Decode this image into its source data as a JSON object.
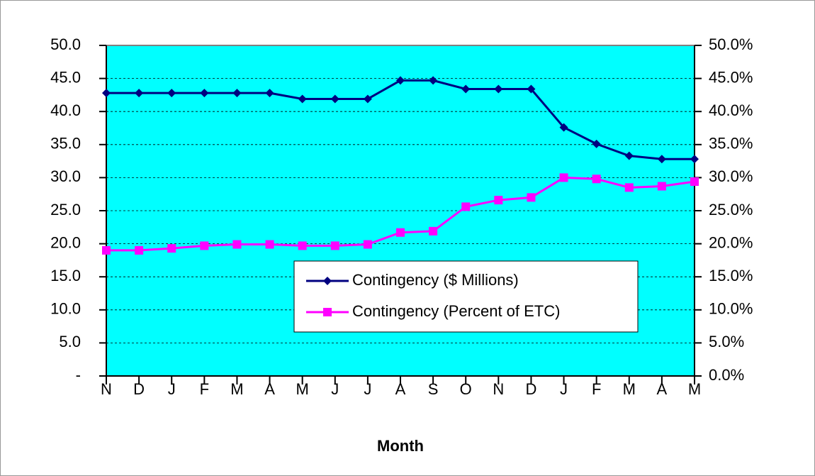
{
  "chart_data": {
    "type": "line",
    "x_label": "Month",
    "categories": [
      "N",
      "D",
      "J",
      "F",
      "M",
      "A",
      "M",
      "J",
      "J",
      "A",
      "S",
      "O",
      "N",
      "D",
      "J",
      "F",
      "M",
      "A",
      "M"
    ],
    "series": [
      {
        "name": "Contingency ($ Millions)",
        "color": "#000080",
        "marker": "diamond",
        "values": [
          42.8,
          42.8,
          42.8,
          42.8,
          42.8,
          42.8,
          41.9,
          41.9,
          41.9,
          44.7,
          44.7,
          43.4,
          43.4,
          43.4,
          37.6,
          35.1,
          33.3,
          32.8,
          32.8
        ]
      },
      {
        "name": "Contingency (Percent of ETC)",
        "color": "#ff00ff",
        "marker": "square",
        "axis": "y2",
        "values": [
          19.0,
          19.0,
          19.3,
          19.7,
          19.9,
          19.9,
          19.7,
          19.7,
          19.9,
          21.7,
          21.9,
          25.6,
          26.6,
          27.0,
          30.0,
          29.8,
          28.5,
          28.7,
          29.4
        ]
      }
    ],
    "ylim": [
      0,
      50
    ],
    "yticks": [
      {
        "value": 0,
        "label": "-"
      },
      {
        "value": 5,
        "label": "5.0"
      },
      {
        "value": 10,
        "label": "10.0"
      },
      {
        "value": 15,
        "label": "15.0"
      },
      {
        "value": 20,
        "label": "20.0"
      },
      {
        "value": 25,
        "label": "25.0"
      },
      {
        "value": 30,
        "label": "30.0"
      },
      {
        "value": 35,
        "label": "35.0"
      },
      {
        "value": 40,
        "label": "40.0"
      },
      {
        "value": 45,
        "label": "45.0"
      },
      {
        "value": 50,
        "label": "50.0"
      }
    ],
    "y2lim": [
      0,
      50
    ],
    "y2ticks": [
      {
        "value": 0,
        "label": "0.0%"
      },
      {
        "value": 5,
        "label": "5.0%"
      },
      {
        "value": 10,
        "label": "10.0%"
      },
      {
        "value": 15,
        "label": "15.0%"
      },
      {
        "value": 20,
        "label": "20.0%"
      },
      {
        "value": 25,
        "label": "25.0%"
      },
      {
        "value": 30,
        "label": "30.0%"
      },
      {
        "value": 35,
        "label": "35.0%"
      },
      {
        "value": 40,
        "label": "40.0%"
      },
      {
        "value": 45,
        "label": "45.0%"
      },
      {
        "value": 50,
        "label": "50.0%"
      }
    ],
    "grid": true,
    "plot_background": "#00ffff"
  }
}
